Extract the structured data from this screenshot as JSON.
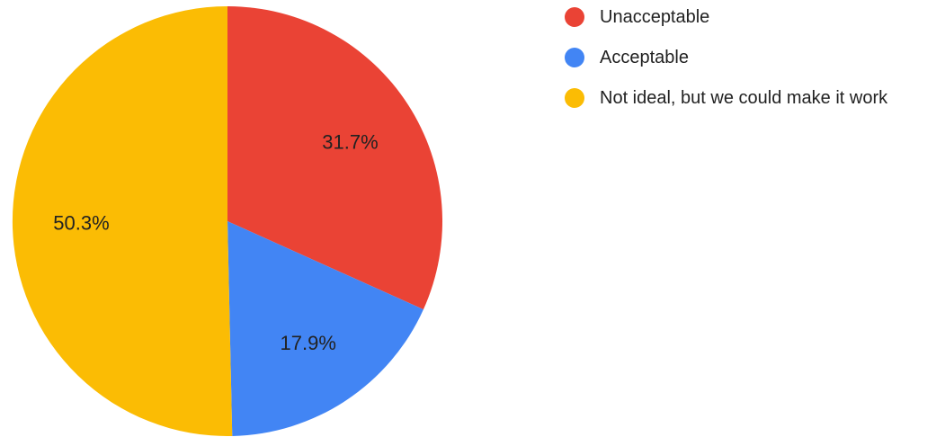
{
  "chart_data": {
    "type": "pie",
    "title": "",
    "legend_position": "top-right",
    "slices": [
      {
        "name": "Unacceptable",
        "value": 31.7,
        "label": "31.7%",
        "color": "#EA4335"
      },
      {
        "name": "Acceptable",
        "value": 17.9,
        "label": "17.9%",
        "color": "#4285F4"
      },
      {
        "name": "Not ideal, but we could make it work",
        "value": 50.3,
        "label": "50.3%",
        "color": "#FBBC04"
      }
    ]
  }
}
